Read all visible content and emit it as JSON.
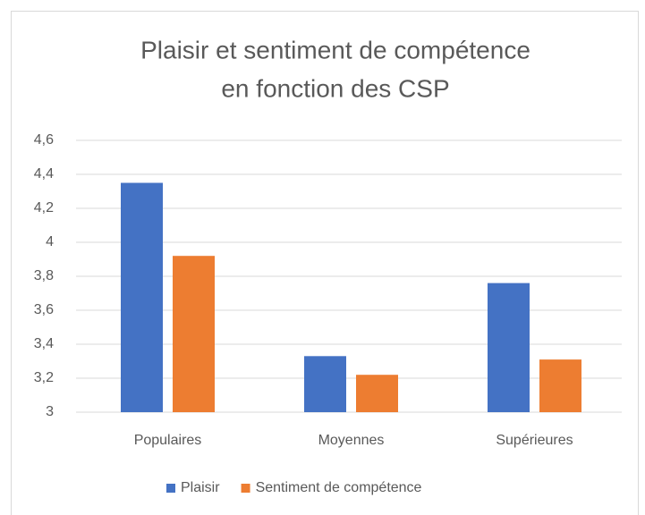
{
  "chart_data": {
    "type": "bar",
    "title": [
      "Plaisir et sentiment de compétence",
      "en fonction des CSP"
    ],
    "categories": [
      "Populaires",
      "Moyennes",
      "Supérieures"
    ],
    "series": [
      {
        "name": "Plaisir",
        "color": "#4472c4",
        "values": [
          4.35,
          3.33,
          3.76
        ]
      },
      {
        "name": "Sentiment de compétence",
        "color": "#ed7d31",
        "values": [
          3.92,
          3.22,
          3.31
        ]
      }
    ],
    "ylim": [
      3,
      4.6
    ],
    "yticks": [
      3,
      {
        "value": 3.2,
        "label": "3,2"
      },
      {
        "value": 3.4,
        "label": "3,4"
      },
      {
        "value": 3.6,
        "label": "3,6"
      },
      {
        "value": 3.8,
        "label": "3,8"
      },
      4,
      {
        "value": 4.2,
        "label": "4,2"
      },
      {
        "value": 4.4,
        "label": "4,4"
      },
      {
        "value": 4.6,
        "label": "4,6"
      }
    ],
    "grid": true,
    "legend": "bottom"
  }
}
